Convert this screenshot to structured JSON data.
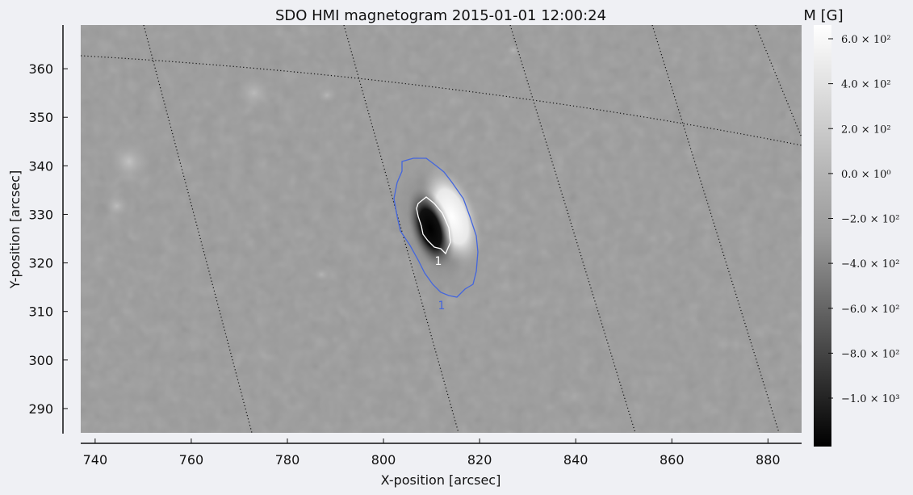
{
  "chart_data": {
    "type": "heatmap",
    "title": "SDO HMI magnetogram 2015-01-01 12:00:24",
    "xlabel": "X-position [arcsec]",
    "ylabel": "Y-position [arcsec]",
    "xlim": [
      737,
      887
    ],
    "ylim": [
      285,
      369
    ],
    "x_ticks": [
      740,
      760,
      780,
      800,
      820,
      840,
      860,
      880
    ],
    "y_ticks": [
      290,
      300,
      310,
      320,
      330,
      340,
      350,
      360
    ],
    "colorbar": {
      "label": "M [G]",
      "colormap": "grayscale",
      "ticks": [
        {
          "label": "6.0 × 10²",
          "value": 600
        },
        {
          "label": "4.0 × 10²",
          "value": 400
        },
        {
          "label": "2.0 × 10²",
          "value": 200
        },
        {
          "label": "0.0 × 10⁰",
          "value": 0
        },
        {
          "label": "−2.0 × 10²",
          "value": -200
        },
        {
          "label": "−4.0 × 10²",
          "value": -400
        },
        {
          "label": "−6.0 × 10²",
          "value": -600
        },
        {
          "label": "−8.0 × 10²",
          "value": -800
        },
        {
          "label": "−1.0 × 10³",
          "value": -1000
        }
      ]
    },
    "contours": [
      {
        "label": "1",
        "color": "#4466dd"
      },
      {
        "label": "1",
        "color": "#ffffff"
      }
    ],
    "grid": "heliographic, dotted"
  }
}
